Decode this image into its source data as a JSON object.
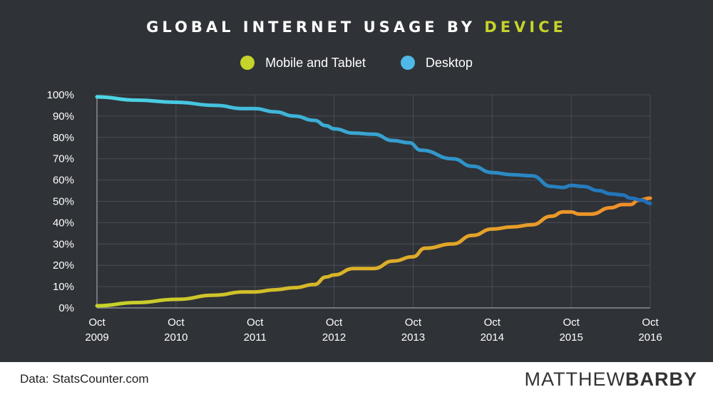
{
  "header": {
    "title_main": "GLOBAL INTERNET USAGE BY",
    "title_accent": "DEVICE"
  },
  "legend": {
    "items": [
      {
        "label": "Mobile and Tablet",
        "color": "#c5d32a"
      },
      {
        "label": "Desktop",
        "color": "#4fb8e6"
      }
    ]
  },
  "footer": {
    "source": "Data: StatsCounter.com",
    "brand_light": "MATTHEW",
    "brand_bold": "BARBY"
  },
  "chart_data": {
    "type": "line",
    "title": "GLOBAL INTERNET USAGE BY DEVICE",
    "xlabel": "",
    "ylabel": "",
    "ylim": [
      0,
      100
    ],
    "xlim": [
      0,
      7
    ],
    "y_ticks": [
      "0%",
      "10%",
      "20%",
      "30%",
      "40%",
      "50%",
      "60%",
      "70%",
      "80%",
      "90%",
      "100%"
    ],
    "x_ticks": [
      {
        "month": "Oct",
        "year": "2009"
      },
      {
        "month": "Oct",
        "year": "2010"
      },
      {
        "month": "Oct",
        "year": "2011"
      },
      {
        "month": "Oct",
        "year": "2012"
      },
      {
        "month": "Oct",
        "year": "2013"
      },
      {
        "month": "Oct",
        "year": "2014"
      },
      {
        "month": "Oct",
        "year": "2015"
      },
      {
        "month": "Oct",
        "year": "2016"
      }
    ],
    "grid": true,
    "legend_position": "top-center",
    "series": [
      {
        "name": "Mobile and Tablet",
        "color_start": "#c5d32a",
        "color_end": "#f28c28",
        "points": [
          [
            0,
            1.0
          ],
          [
            0.5,
            2.5
          ],
          [
            1.0,
            4.0
          ],
          [
            1.5,
            6.0
          ],
          [
            1.85,
            7.5
          ],
          [
            2.0,
            7.5
          ],
          [
            2.25,
            8.5
          ],
          [
            2.5,
            9.5
          ],
          [
            2.75,
            11.0
          ],
          [
            2.9,
            14.5
          ],
          [
            3.0,
            15.5
          ],
          [
            3.25,
            18.5
          ],
          [
            3.5,
            18.5
          ],
          [
            3.75,
            22.0
          ],
          [
            4.0,
            24.0
          ],
          [
            4.15,
            28.0
          ],
          [
            4.5,
            30.0
          ],
          [
            4.75,
            34.0
          ],
          [
            5.0,
            37.0
          ],
          [
            5.25,
            38.0
          ],
          [
            5.5,
            39.0
          ],
          [
            5.75,
            43.0
          ],
          [
            5.9,
            45.0
          ],
          [
            6.0,
            45.0
          ],
          [
            6.1,
            44.0
          ],
          [
            6.25,
            44.0
          ],
          [
            6.5,
            47.0
          ],
          [
            6.65,
            48.5
          ],
          [
            6.75,
            48.5
          ],
          [
            6.85,
            50.5
          ],
          [
            7.0,
            51.5
          ]
        ]
      },
      {
        "name": "Desktop",
        "color_start": "#4fd8e8",
        "color_end": "#1f6fb8",
        "points": [
          [
            0,
            99.0
          ],
          [
            0.5,
            97.5
          ],
          [
            1.0,
            96.5
          ],
          [
            1.5,
            95.0
          ],
          [
            1.85,
            93.5
          ],
          [
            2.0,
            93.5
          ],
          [
            2.25,
            92.0
          ],
          [
            2.5,
            90.0
          ],
          [
            2.75,
            88.0
          ],
          [
            2.9,
            85.5
          ],
          [
            3.0,
            84.0
          ],
          [
            3.25,
            82.0
          ],
          [
            3.5,
            81.5
          ],
          [
            3.75,
            78.5
          ],
          [
            3.95,
            77.5
          ],
          [
            4.1,
            74.0
          ],
          [
            4.5,
            70.0
          ],
          [
            4.75,
            66.5
          ],
          [
            5.0,
            63.5
          ],
          [
            5.25,
            62.5
          ],
          [
            5.5,
            62.0
          ],
          [
            5.75,
            57.0
          ],
          [
            5.9,
            56.5
          ],
          [
            6.0,
            57.5
          ],
          [
            6.15,
            57.0
          ],
          [
            6.35,
            55.0
          ],
          [
            6.5,
            53.5
          ],
          [
            6.65,
            53.0
          ],
          [
            6.75,
            51.5
          ],
          [
            6.9,
            50.5
          ],
          [
            7.0,
            49.0
          ]
        ]
      }
    ]
  }
}
